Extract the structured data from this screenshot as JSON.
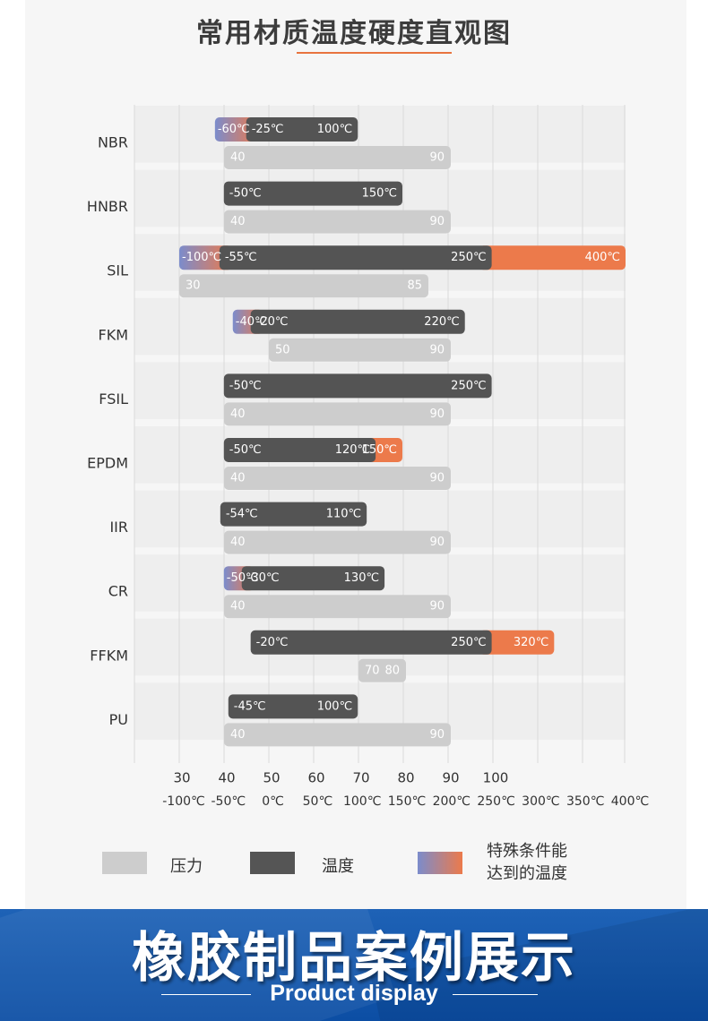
{
  "header": {
    "title": "常用材质温度硬度直观图"
  },
  "chart_data": {
    "type": "bar",
    "title": "常用材质温度硬度直观图",
    "categories": [
      "NBR",
      "HNBR",
      "SIL",
      "FKM",
      "FSIL",
      "EPDM",
      "IIR",
      "CR",
      "FFKM",
      "PU"
    ],
    "hardness_axis": {
      "ticks": [
        30,
        40,
        50,
        60,
        70,
        80,
        90,
        100
      ],
      "range": [
        30,
        100
      ]
    },
    "temperature_axis": {
      "ticks": [
        -100,
        -50,
        0,
        50,
        100,
        150,
        200,
        250,
        300,
        350,
        400
      ],
      "labels": [
        "-100℃",
        "-50℃",
        "0℃",
        "50℃",
        "100℃",
        "150℃",
        "200℃",
        "250℃",
        "300℃",
        "350℃",
        "400℃"
      ],
      "range": [
        -100,
        400
      ]
    },
    "grid": true,
    "materials": [
      {
        "name": "NBR",
        "hardness": [
          40,
          90
        ],
        "temp": [
          -25,
          100
        ],
        "special_low": -60,
        "special_high": null,
        "labels": {
          "special_low": "-60℃",
          "low": "-25℃",
          "high": "100℃",
          "special_high": "",
          "hard_low": "40",
          "hard_high": "90"
        }
      },
      {
        "name": "HNBR",
        "hardness": [
          40,
          90
        ],
        "temp": [
          -50,
          150
        ],
        "special_low": null,
        "special_high": null,
        "labels": {
          "special_low": "",
          "low": "-50℃",
          "high": "150℃",
          "special_high": "",
          "hard_low": "40",
          "hard_high": "90"
        }
      },
      {
        "name": "SIL",
        "hardness": [
          30,
          85
        ],
        "temp": [
          -55,
          250
        ],
        "special_low": -100,
        "special_high": 400,
        "labels": {
          "special_low": "-100℃",
          "low": "-55℃",
          "high": "250℃",
          "special_high": "400℃",
          "hard_low": "30",
          "hard_high": "85"
        }
      },
      {
        "name": "FKM",
        "hardness": [
          50,
          90
        ],
        "temp": [
          -20,
          220
        ],
        "special_low": -40,
        "special_high": null,
        "labels": {
          "special_low": "-40℃",
          "low": "-20℃",
          "high": "220℃",
          "special_high": "",
          "hard_low": "50",
          "hard_high": "90"
        }
      },
      {
        "name": "FSIL",
        "hardness": [
          40,
          90
        ],
        "temp": [
          -50,
          250
        ],
        "special_low": null,
        "special_high": null,
        "labels": {
          "special_low": "",
          "low": "-50℃",
          "high": "250℃",
          "special_high": "",
          "hard_low": "40",
          "hard_high": "90"
        }
      },
      {
        "name": "EPDM",
        "hardness": [
          40,
          90
        ],
        "temp": [
          -50,
          120
        ],
        "special_low": null,
        "special_high": 150,
        "labels": {
          "special_low": "",
          "low": "-50℃",
          "high": "120℃",
          "special_high": "150℃",
          "hard_low": "40",
          "hard_high": "90"
        }
      },
      {
        "name": "IIR",
        "hardness": [
          40,
          90
        ],
        "temp": [
          -54,
          110
        ],
        "special_low": null,
        "special_high": null,
        "labels": {
          "special_low": "",
          "low": "-54℃",
          "high": "110℃",
          "special_high": "",
          "hard_low": "40",
          "hard_high": "90"
        }
      },
      {
        "name": "CR",
        "hardness": [
          40,
          90
        ],
        "temp": [
          -30,
          130
        ],
        "special_low": -50,
        "special_high": null,
        "labels": {
          "special_low": "-50℃",
          "low": "-30℃",
          "high": "130℃",
          "special_high": "",
          "hard_low": "40",
          "hard_high": "90"
        }
      },
      {
        "name": "FFKM",
        "hardness": [
          70,
          80
        ],
        "temp": [
          -20,
          250
        ],
        "special_low": null,
        "special_high": 320,
        "labels": {
          "special_low": "",
          "low": "-20℃",
          "high": "250℃",
          "special_high": "320℃",
          "hard_low": "70",
          "hard_high": "80"
        }
      },
      {
        "name": "PU",
        "hardness": [
          40,
          90
        ],
        "temp": [
          -45,
          100
        ],
        "special_low": null,
        "special_high": null,
        "labels": {
          "special_low": "",
          "low": "-45℃",
          "high": "100℃",
          "special_high": "",
          "hard_low": "40",
          "hard_high": "90"
        }
      }
    ],
    "legend": {
      "placement": "bottom",
      "items": [
        {
          "label": "压力",
          "color": "#cdcdcd"
        },
        {
          "label": "温度",
          "color": "#555555"
        },
        {
          "label": "特殊条件能达到的温度",
          "line1": "特殊条件能",
          "line2": "达到的温度",
          "gradient": [
            "#7b8ccc",
            "#ec7a4b"
          ]
        }
      ]
    },
    "colors": {
      "hardness": "#cdcdcd",
      "temperature": "#545454",
      "special_low": "#7b8ccc",
      "special_high": "#ec7a4b",
      "grid": "#d9d9d9"
    }
  },
  "banner": {
    "title": "橡胶制品案例展示",
    "subtitle": "Product display"
  }
}
